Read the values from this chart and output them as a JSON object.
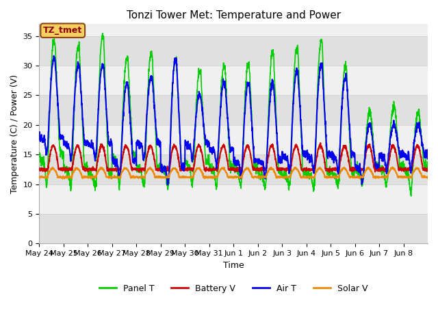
{
  "title": "Tonzi Tower Met: Temperature and Power",
  "xlabel": "Time",
  "ylabel": "Temperature (C) / Power (V)",
  "ylim": [
    0,
    37
  ],
  "yticks": [
    0,
    5,
    10,
    15,
    20,
    25,
    30,
    35
  ],
  "figure_bg": "#ffffff",
  "plot_bg": "#f0f0f0",
  "stripe_color": "#e0e0e0",
  "legend_label": "TZ_tmet",
  "series_colors": {
    "Panel T": "#00cc00",
    "Battery V": "#cc0000",
    "Air T": "#0000ee",
    "Solar V": "#ee8800"
  },
  "x_tick_labels": [
    "May 24",
    "May 25",
    "May 26",
    "May 27",
    "May 28",
    "May 29",
    "May 30",
    "May 31",
    "Jun 1",
    "Jun 2",
    "Jun 3",
    "Jun 4",
    "Jun 5",
    "Jun 6",
    "Jun 7",
    "Jun 8"
  ],
  "n_days": 16,
  "points_per_day": 144
}
